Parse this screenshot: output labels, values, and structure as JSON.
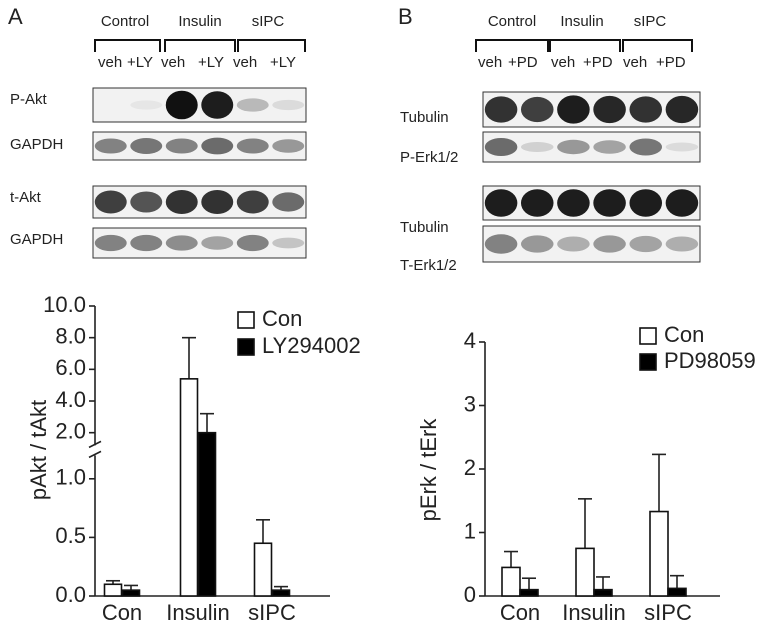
{
  "panels": [
    {
      "label": "A",
      "groups": [
        "Control",
        "Insulin",
        "sIPC"
      ],
      "lanes": [
        "veh",
        "+LY",
        "veh",
        "+LY",
        "veh",
        "+LY"
      ],
      "blots": [
        "P-Akt",
        "GAPDH",
        "t-Akt",
        "GAPDH"
      ]
    },
    {
      "label": "B",
      "groups": [
        "Control",
        "Insulin",
        "sIPC"
      ],
      "lanes": [
        "veh",
        "+PD",
        "veh",
        "+PD",
        "veh",
        "+PD"
      ],
      "blots": [
        "Tubulin",
        "P-Erk1/2",
        "Tubulin",
        "T-Erk1/2"
      ]
    }
  ],
  "chart_data": [
    {
      "type": "bar",
      "y_label": "pAkt / tAkt",
      "categories": [
        "Con",
        "Insulin",
        "sIPC"
      ],
      "series": [
        {
          "name": "Con",
          "color": "#ffffff",
          "values": [
            0.1,
            5.4,
            0.45
          ],
          "errors": [
            0.03,
            2.6,
            0.2
          ]
        },
        {
          "name": "LY294002",
          "color": "#000000",
          "values": [
            0.05,
            2.0,
            0.05
          ],
          "errors": [
            0.04,
            1.2,
            0.03
          ]
        }
      ],
      "ylim": [
        0,
        10
      ],
      "ybreak": 1.2,
      "yticks": [
        {
          "value": 0,
          "label": "0.0"
        },
        {
          "value": 0.5,
          "label": "0.5"
        },
        {
          "value": 1,
          "label": "1.0"
        },
        {
          "value": 2,
          "label": "2.0"
        },
        {
          "value": 4,
          "label": "4.0"
        },
        {
          "value": 6,
          "label": "6.0"
        },
        {
          "value": 8,
          "label": "8.0"
        },
        {
          "value": 10,
          "label": "10.0"
        }
      ],
      "legend": "upper right",
      "grid": false
    },
    {
      "type": "bar",
      "y_label": "pErk / tErk",
      "categories": [
        "Con",
        "Insulin",
        "sIPC"
      ],
      "series": [
        {
          "name": "Con",
          "color": "#ffffff",
          "values": [
            0.45,
            0.75,
            1.33
          ],
          "errors": [
            0.25,
            0.78,
            0.9
          ]
        },
        {
          "name": "PD98059",
          "color": "#000000",
          "values": [
            0.1,
            0.1,
            0.12
          ],
          "errors": [
            0.18,
            0.2,
            0.2
          ]
        }
      ],
      "ylim": [
        0,
        4
      ],
      "yticks": [
        0,
        1,
        2,
        3,
        4
      ],
      "legend": "upper right",
      "grid": false
    }
  ]
}
